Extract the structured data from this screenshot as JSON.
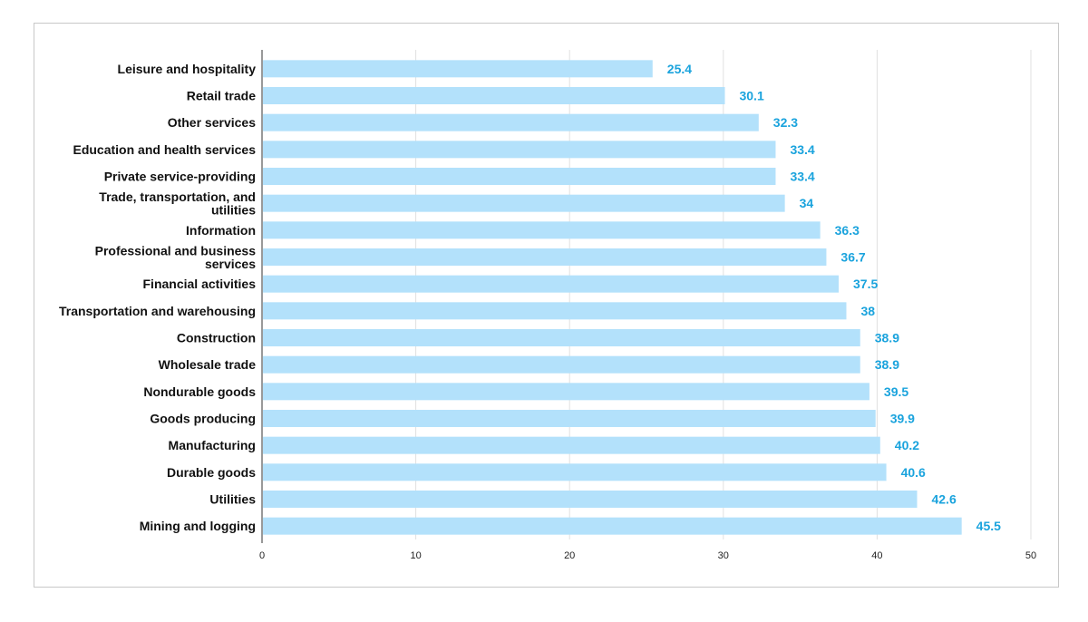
{
  "chart_data": {
    "type": "bar",
    "orientation": "horizontal",
    "categories": [
      "Leisure and hospitality",
      "Retail trade",
      "Other services",
      "Education and health services",
      "Private service-providing",
      "Trade, transportation, and utilities",
      "Information",
      "Professional and business services",
      "Financial activities",
      "Transportation and warehousing",
      "Construction",
      "Wholesale trade",
      "Nondurable goods",
      "Goods producing",
      "Manufacturing",
      "Durable goods",
      "Utilities",
      "Mining and logging"
    ],
    "values": [
      25.4,
      30.1,
      32.3,
      33.4,
      33.4,
      34,
      36.3,
      36.7,
      37.5,
      38,
      38.9,
      38.9,
      39.5,
      39.9,
      40.2,
      40.6,
      42.6,
      45.5
    ],
    "value_labels": [
      "25.4",
      "30.1",
      "32.3",
      "33.4",
      "33.4",
      "34",
      "36.3",
      "36.7",
      "37.5",
      "38",
      "38.9",
      "38.9",
      "39.5",
      "39.9",
      "40.2",
      "40.6",
      "42.6",
      "45.5"
    ],
    "x_ticks": [
      "0",
      "10",
      "20",
      "30",
      "40",
      "50"
    ],
    "xlim": [
      0,
      50
    ],
    "grid": true,
    "legend": "none",
    "title": "",
    "xlabel": "",
    "ylabel": "",
    "colors": {
      "bar": "#b3e1fb",
      "value_label": "#1aa3dd",
      "grid": "#e0e0e0",
      "axis": "#333333"
    }
  }
}
